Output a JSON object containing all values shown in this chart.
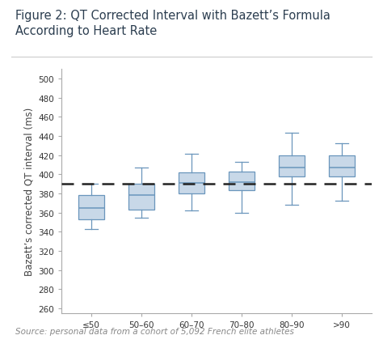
{
  "title_line1": "Figure 2: QT Corrected Interval with Bazett’s Formula",
  "title_line2": "According to Heart Rate",
  "ylabel": "Bazett’s corrected QT interval (ms)",
  "source_text": "Source: personal data from a cohort of 5,092 French elite athletes",
  "categories": [
    "≤50",
    "50–60",
    "60–70",
    "70–80",
    "80–90",
    ">90"
  ],
  "boxes": [
    {
      "whislo": 343,
      "q1": 353,
      "med": 365,
      "q3": 378,
      "whishi": 390
    },
    {
      "whislo": 355,
      "q1": 363,
      "med": 378,
      "q3": 390,
      "whishi": 407
    },
    {
      "whislo": 362,
      "q1": 380,
      "med": 391,
      "q3": 402,
      "whishi": 421
    },
    {
      "whislo": 360,
      "q1": 383,
      "med": 392,
      "q3": 403,
      "whishi": 413
    },
    {
      "whislo": 368,
      "q1": 398,
      "med": 407,
      "q3": 420,
      "whishi": 443
    },
    {
      "whislo": 372,
      "q1": 398,
      "med": 407,
      "q3": 420,
      "whishi": 432
    }
  ],
  "dashed_line_y": 390,
  "ylim": [
    255,
    510
  ],
  "yticks": [
    260,
    280,
    300,
    320,
    340,
    360,
    380,
    400,
    420,
    440,
    460,
    480,
    500
  ],
  "box_facecolor": "#c8d8e8",
  "box_edgecolor": "#6a96bc",
  "whisker_color": "#6a96bc",
  "median_color": "#6a96bc",
  "cap_color": "#6a96bc",
  "dashed_line_color": "#222222",
  "title_fontsize": 10.5,
  "axis_label_fontsize": 8.5,
  "tick_fontsize": 7.5,
  "source_fontsize": 7.5,
  "title_color": "#2c3e50",
  "source_color": "#888888",
  "spine_color": "#aaaaaa",
  "tick_color": "#333333"
}
